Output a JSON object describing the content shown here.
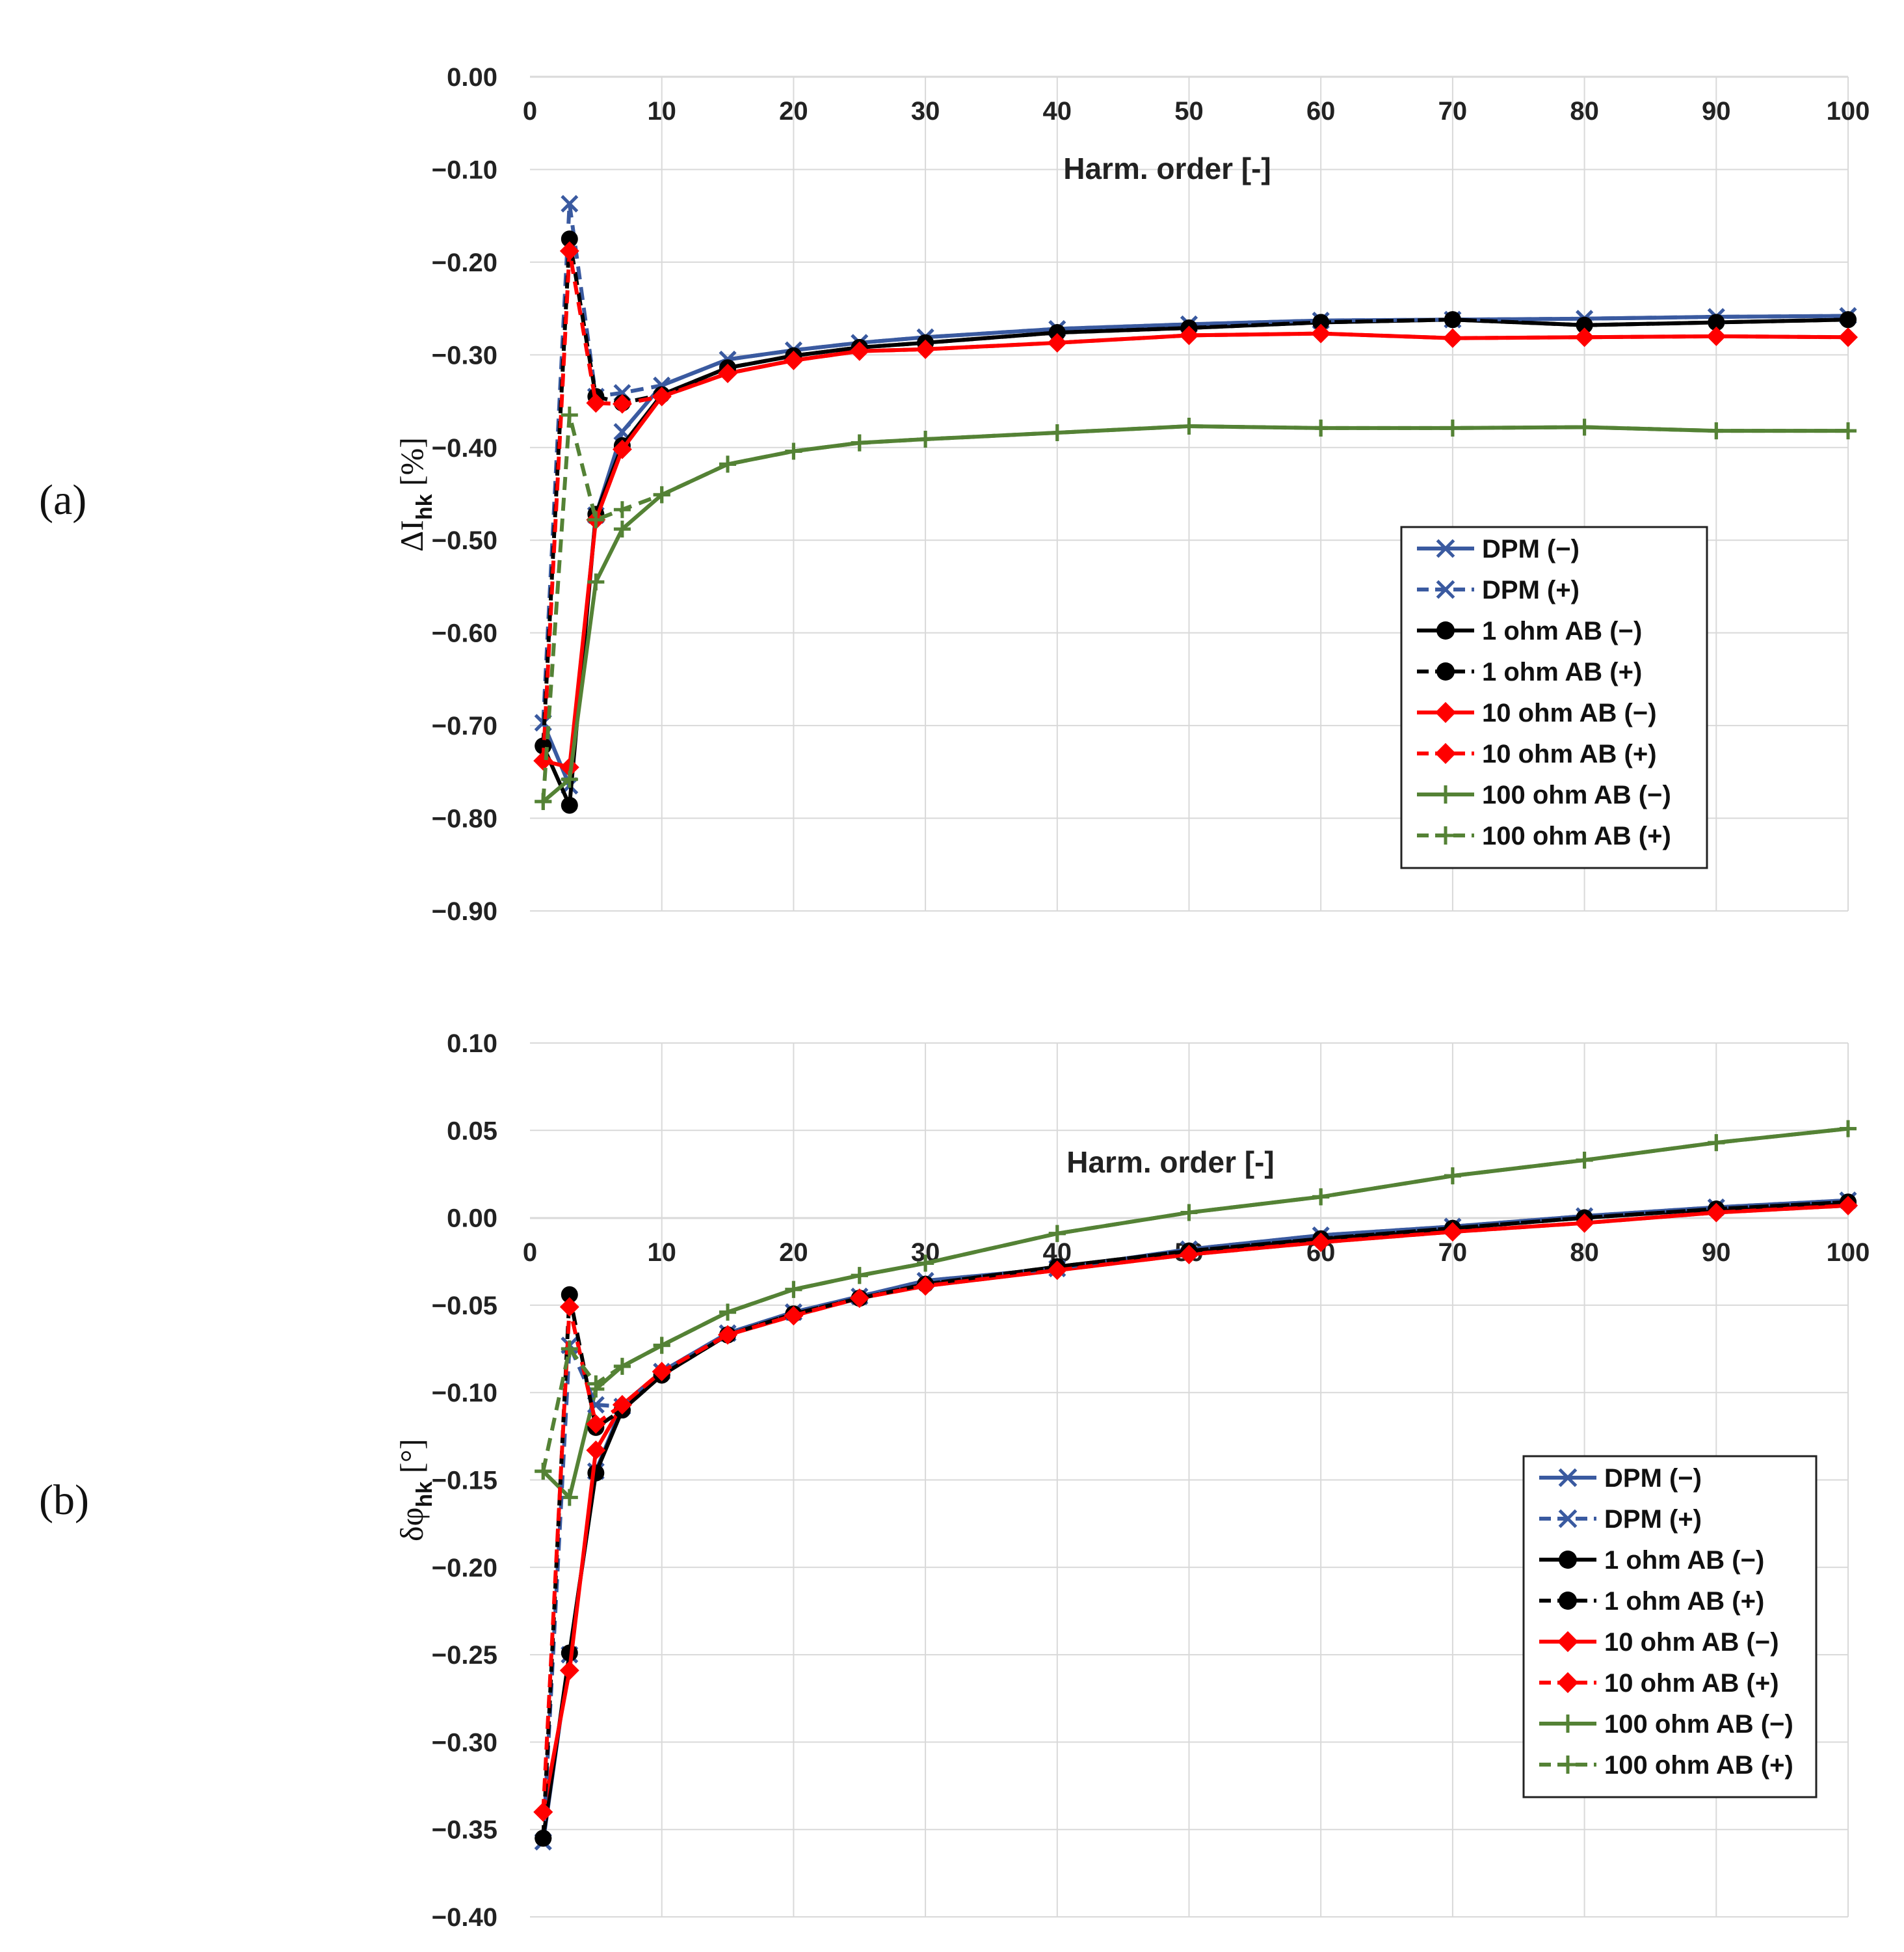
{
  "figure": {
    "panels": [
      "(a)",
      "(b)"
    ]
  },
  "chart_data": [
    {
      "type": "line",
      "panel_label": "(a)",
      "title": "",
      "xlabel": "Harm. order [-]",
      "ylabel_main": "ΔI",
      "ylabel_sub": "hk",
      "ylabel_unit": " [%]",
      "xlim": [
        0,
        100
      ],
      "ylim": [
        -0.9,
        0.0
      ],
      "x_ticks": [
        0,
        10,
        20,
        30,
        40,
        50,
        60,
        70,
        80,
        90,
        100
      ],
      "y_ticks": [
        "0.00",
        "−0.10",
        "−0.20",
        "−0.30",
        "−0.40",
        "−0.50",
        "−0.60",
        "−0.70",
        "−0.80",
        "−0.90"
      ],
      "x_axis_position": "top",
      "grid": true,
      "legend_position": "lower-right",
      "x": [
        1,
        3,
        5,
        7,
        10,
        15,
        20,
        25,
        30,
        40,
        50,
        60,
        70,
        80,
        90,
        100
      ],
      "series": [
        {
          "name": "DPM (−)",
          "color": "#3a5aa0",
          "marker": "x",
          "dashed": false,
          "values": [
            -0.697,
            -0.765,
            -0.473,
            -0.383,
            -0.333,
            -0.305,
            -0.295,
            -0.287,
            -0.281,
            -0.272,
            -0.267,
            -0.263,
            -0.262,
            -0.261,
            -0.259,
            -0.258
          ]
        },
        {
          "name": "DPM (+)",
          "color": "#3a5aa0",
          "marker": "x",
          "dashed": true,
          "values": [
            -0.697,
            -0.137,
            -0.345,
            -0.341,
            -0.333,
            -0.305,
            -0.295,
            -0.287,
            -0.281,
            -0.272,
            -0.267,
            -0.263,
            -0.262,
            -0.261,
            -0.259,
            -0.258
          ]
        },
        {
          "name": "1 ohm AB (−)",
          "color": "#000000",
          "marker": "circle",
          "dashed": false,
          "values": [
            -0.722,
            -0.786,
            -0.472,
            -0.398,
            -0.343,
            -0.314,
            -0.301,
            -0.292,
            -0.287,
            -0.276,
            -0.271,
            -0.265,
            -0.262,
            -0.268,
            -0.265,
            -0.262
          ]
        },
        {
          "name": "1 ohm AB (+)",
          "color": "#000000",
          "marker": "circle",
          "dashed": true,
          "values": [
            -0.722,
            -0.175,
            -0.345,
            -0.352,
            -0.343,
            -0.314,
            -0.301,
            -0.292,
            -0.287,
            -0.276,
            -0.271,
            -0.265,
            -0.262,
            -0.268,
            -0.265,
            -0.262
          ]
        },
        {
          "name": "10 ohm AB (−)",
          "color": "#ff0000",
          "marker": "diamond",
          "dashed": false,
          "values": [
            -0.738,
            -0.745,
            -0.478,
            -0.402,
            -0.345,
            -0.32,
            -0.306,
            -0.296,
            -0.294,
            -0.287,
            -0.279,
            -0.277,
            -0.282,
            -0.281,
            -0.28,
            -0.281
          ]
        },
        {
          "name": "10 ohm AB (+)",
          "color": "#ff0000",
          "marker": "diamond",
          "dashed": true,
          "values": [
            -0.738,
            -0.188,
            -0.352,
            -0.353,
            -0.345,
            -0.32,
            -0.306,
            -0.296,
            -0.294,
            -0.287,
            -0.279,
            -0.277,
            -0.282,
            -0.281,
            -0.28,
            -0.281
          ]
        },
        {
          "name": "100 ohm AB (−)",
          "color": "#548235",
          "marker": "plus",
          "dashed": false,
          "values": [
            -0.782,
            -0.758,
            -0.545,
            -0.488,
            -0.451,
            -0.418,
            -0.404,
            -0.395,
            -0.391,
            -0.384,
            -0.377,
            -0.379,
            -0.379,
            -0.378,
            -0.382,
            -0.382
          ]
        },
        {
          "name": "100 ohm AB (+)",
          "color": "#548235",
          "marker": "plus",
          "dashed": true,
          "values": [
            -0.782,
            -0.365,
            -0.478,
            -0.467,
            -0.451,
            -0.418,
            -0.404,
            -0.395,
            -0.391,
            -0.384,
            -0.377,
            -0.379,
            -0.379,
            -0.378,
            -0.382,
            -0.382
          ]
        }
      ]
    },
    {
      "type": "line",
      "panel_label": "(b)",
      "title": "",
      "xlabel": "Harm. order [-]",
      "ylabel_main": "δφ",
      "ylabel_sub": "hk",
      "ylabel_unit": " [°]",
      "xlim": [
        0,
        100
      ],
      "ylim": [
        -0.4,
        0.1
      ],
      "x_ticks": [
        0,
        10,
        20,
        30,
        40,
        50,
        60,
        70,
        80,
        90,
        100
      ],
      "y_ticks": [
        "0.10",
        "0.05",
        "0.00",
        "−0.05",
        "−0.10",
        "−0.15",
        "−0.20",
        "−0.25",
        "−0.30",
        "−0.35",
        "−0.40"
      ],
      "x_axis_position": "at y = 0",
      "grid": true,
      "legend_position": "lower-right",
      "x": [
        1,
        3,
        5,
        7,
        10,
        15,
        20,
        25,
        30,
        40,
        50,
        60,
        70,
        80,
        90,
        100
      ],
      "series": [
        {
          "name": "DPM (−)",
          "color": "#3a5aa0",
          "marker": "x",
          "dashed": false,
          "values": [
            -0.357,
            -0.25,
            -0.145,
            -0.108,
            -0.088,
            -0.066,
            -0.054,
            -0.045,
            -0.036,
            -0.029,
            -0.018,
            -0.01,
            -0.005,
            0.001,
            0.006,
            0.01
          ]
        },
        {
          "name": "DPM (+)",
          "color": "#3a5aa0",
          "marker": "x",
          "dashed": true,
          "values": [
            -0.357,
            -0.073,
            -0.107,
            -0.108,
            -0.088,
            -0.066,
            -0.054,
            -0.045,
            -0.036,
            -0.029,
            -0.018,
            -0.01,
            -0.005,
            0.001,
            0.006,
            0.01
          ]
        },
        {
          "name": "1 ohm AB (−)",
          "color": "#000000",
          "marker": "circle",
          "dashed": false,
          "values": [
            -0.355,
            -0.249,
            -0.146,
            -0.11,
            -0.09,
            -0.067,
            -0.055,
            -0.046,
            -0.038,
            -0.028,
            -0.019,
            -0.012,
            -0.006,
            0.0,
            0.005,
            0.009
          ]
        },
        {
          "name": "1 ohm AB (+)",
          "color": "#000000",
          "marker": "circle",
          "dashed": true,
          "values": [
            -0.355,
            -0.044,
            -0.12,
            -0.11,
            -0.09,
            -0.067,
            -0.055,
            -0.046,
            -0.038,
            -0.028,
            -0.019,
            -0.012,
            -0.006,
            0.0,
            0.005,
            0.009
          ]
        },
        {
          "name": "10 ohm AB (−)",
          "color": "#ff0000",
          "marker": "diamond",
          "dashed": false,
          "values": [
            -0.34,
            -0.259,
            -0.133,
            -0.107,
            -0.088,
            -0.067,
            -0.056,
            -0.046,
            -0.039,
            -0.03,
            -0.021,
            -0.014,
            -0.008,
            -0.003,
            0.003,
            0.007
          ]
        },
        {
          "name": "10 ohm AB (+)",
          "color": "#ff0000",
          "marker": "diamond",
          "dashed": true,
          "values": [
            -0.34,
            -0.051,
            -0.118,
            -0.107,
            -0.088,
            -0.067,
            -0.056,
            -0.046,
            -0.039,
            -0.03,
            -0.021,
            -0.014,
            -0.008,
            -0.003,
            0.003,
            0.007
          ]
        },
        {
          "name": "100 ohm AB (−)",
          "color": "#548235",
          "marker": "plus",
          "dashed": false,
          "values": [
            -0.145,
            -0.16,
            -0.098,
            -0.085,
            -0.073,
            -0.054,
            -0.041,
            -0.033,
            -0.026,
            -0.009,
            0.003,
            0.012,
            0.024,
            0.033,
            0.043,
            0.051
          ]
        },
        {
          "name": "100 ohm AB (+)",
          "color": "#548235",
          "marker": "plus",
          "dashed": true,
          "values": [
            -0.145,
            -0.075,
            -0.095,
            -0.085,
            -0.073,
            -0.054,
            -0.041,
            -0.033,
            -0.026,
            -0.009,
            0.003,
            0.012,
            0.024,
            0.033,
            0.043,
            0.051
          ]
        }
      ]
    }
  ]
}
